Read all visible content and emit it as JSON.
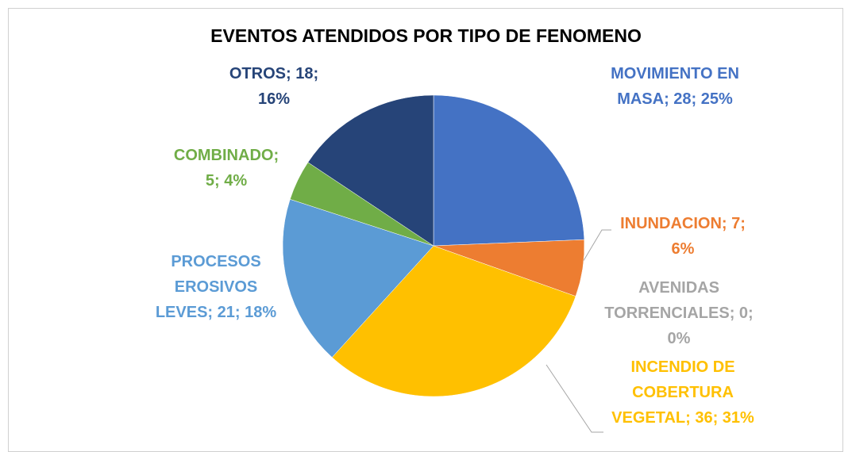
{
  "chart_data": {
    "type": "pie",
    "title": "EVENTOS ATENDIDOS POR TIPO DE FENOMENO",
    "categories": [
      "MOVIMIENTO EN MASA",
      "INUNDACION",
      "AVENIDAS TORRENCIALES",
      "INCENDIO DE COBERTURA VEGETAL",
      "PROCESOS EROSIVOS LEVES",
      "COMBINADO",
      "OTROS"
    ],
    "values": [
      28,
      7,
      0,
      36,
      21,
      5,
      18
    ],
    "value_labels": [
      "MOVIMIENTO EN MASA; 28; 25%",
      "INUNDACION; 7; 6%",
      "AVENIDAS TORRENCIALES; 0; 0%",
      "INCENDIO DE COBERTURA VEGETAL; 36; 31%",
      "PROCESOS EROSIVOS LEVES; 21; 18%",
      "COMBINADO; 5; 4%",
      "OTROS; 18; 16%"
    ],
    "colors": [
      "#4472c4",
      "#ed7d31",
      "#a5a5a5",
      "#ffc000",
      "#5b9bd5",
      "#70ad47",
      "#264478"
    ]
  }
}
